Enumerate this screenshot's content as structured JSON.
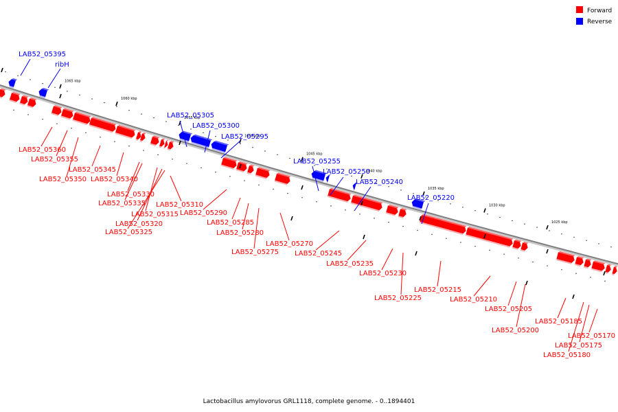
{
  "legend": {
    "forward_label": "Forward",
    "reverse_label": "Reverse",
    "forward_color": "#ff0000",
    "reverse_color": "#0000ff"
  },
  "caption": "Lactobacillus amylovorus GRL1118, complete genome. - 0..1894401",
  "scale_labels": [
    "1065 kbp",
    "1060 kbp",
    "1055 kbp",
    "1050 kbp",
    "1045 kbp",
    "1040 kbp",
    "1035 kbp",
    "1030 kbp",
    "1025 kbp"
  ],
  "reverse_genes": [
    "LAB52_05395",
    "ribH",
    "LAB52_05305",
    "LAB52_05300",
    "LAB52_05295",
    "LAB52_05255",
    "LAB52_05250",
    "LAB52_05240",
    "LAB52_05220"
  ],
  "forward_genes": [
    "LAB52_05360",
    "LAB52_05355",
    "LAB52_05350",
    "LAB52_05345",
    "LAB52_05340",
    "LAB52_05330",
    "LAB52_05335",
    "LAB52_05315",
    "LAB52_05320",
    "LAB52_05325",
    "LAB52_05310",
    "LAB52_05290",
    "LAB52_05285",
    "LAB52_05280",
    "LAB52_05275",
    "LAB52_05270",
    "LAB52_05245",
    "LAB52_05235",
    "LAB52_05230",
    "LAB52_05225",
    "LAB52_05215",
    "LAB52_05210",
    "LAB52_05205",
    "LAB52_05200",
    "LAB52_05185",
    "LAB52_05170",
    "LAB52_05175",
    "LAB52_05180"
  ]
}
